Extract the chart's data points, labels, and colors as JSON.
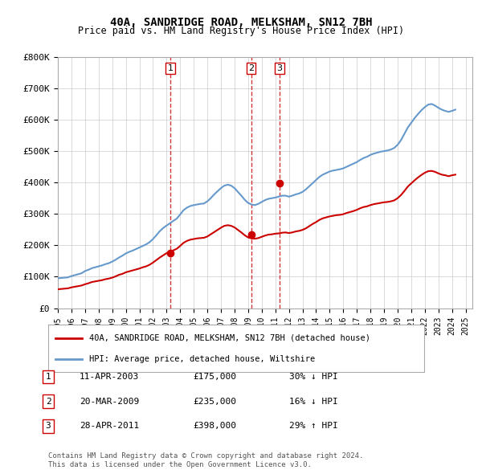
{
  "title": "40A, SANDRIDGE ROAD, MELKSHAM, SN12 7BH",
  "subtitle": "Price paid vs. HM Land Registry's House Price Index (HPI)",
  "legend_line1": "40A, SANDRIDGE ROAD, MELKSHAM, SN12 7BH (detached house)",
  "legend_line2": "HPI: Average price, detached house, Wiltshire",
  "ylabel": "",
  "ylim": [
    0,
    800000
  ],
  "yticks": [
    0,
    100000,
    200000,
    300000,
    400000,
    500000,
    600000,
    700000,
    800000
  ],
  "ytick_labels": [
    "£0",
    "£100K",
    "£200K",
    "£300K",
    "£400K",
    "£500K",
    "£600K",
    "£700K",
    "£800K"
  ],
  "red_color": "#cc0000",
  "blue_color": "#6699cc",
  "sale_marker_color": "#cc0000",
  "vline_color": "#cc0000",
  "background_color": "#ffffff",
  "grid_color": "#cccccc",
  "transactions": [
    {
      "num": 1,
      "date": "11-APR-2003",
      "price": 175000,
      "pct": "30%",
      "dir": "↓",
      "year_x": 2003.28
    },
    {
      "num": 2,
      "date": "20-MAR-2009",
      "price": 235000,
      "pct": "16%",
      "dir": "↓",
      "year_x": 2009.22
    },
    {
      "num": 3,
      "date": "28-APR-2011",
      "price": 398000,
      "pct": "29%",
      "dir": "↑",
      "year_x": 2011.32
    }
  ],
  "hpi_years": [
    1995.0,
    1995.25,
    1995.5,
    1995.75,
    1996.0,
    1996.25,
    1996.5,
    1996.75,
    1997.0,
    1997.25,
    1997.5,
    1997.75,
    1998.0,
    1998.25,
    1998.5,
    1998.75,
    1999.0,
    1999.25,
    1999.5,
    1999.75,
    2000.0,
    2000.25,
    2000.5,
    2000.75,
    2001.0,
    2001.25,
    2001.5,
    2001.75,
    2002.0,
    2002.25,
    2002.5,
    2002.75,
    2003.0,
    2003.25,
    2003.5,
    2003.75,
    2004.0,
    2004.25,
    2004.5,
    2004.75,
    2005.0,
    2005.25,
    2005.5,
    2005.75,
    2006.0,
    2006.25,
    2006.5,
    2006.75,
    2007.0,
    2007.25,
    2007.5,
    2007.75,
    2008.0,
    2008.25,
    2008.5,
    2008.75,
    2009.0,
    2009.25,
    2009.5,
    2009.75,
    2010.0,
    2010.25,
    2010.5,
    2010.75,
    2011.0,
    2011.25,
    2011.5,
    2011.75,
    2012.0,
    2012.25,
    2012.5,
    2012.75,
    2013.0,
    2013.25,
    2013.5,
    2013.75,
    2014.0,
    2014.25,
    2014.5,
    2014.75,
    2015.0,
    2015.25,
    2015.5,
    2015.75,
    2016.0,
    2016.25,
    2016.5,
    2016.75,
    2017.0,
    2017.25,
    2017.5,
    2017.75,
    2018.0,
    2018.25,
    2018.5,
    2018.75,
    2019.0,
    2019.25,
    2019.5,
    2019.75,
    2020.0,
    2020.25,
    2020.5,
    2020.75,
    2021.0,
    2021.25,
    2021.5,
    2021.75,
    2022.0,
    2022.25,
    2022.5,
    2022.75,
    2023.0,
    2023.25,
    2023.5,
    2023.75,
    2024.0,
    2024.25
  ],
  "hpi_values": [
    95000,
    96000,
    97000,
    98000,
    102000,
    105000,
    108000,
    111000,
    118000,
    122000,
    127000,
    130000,
    133000,
    136000,
    140000,
    143000,
    148000,
    154000,
    161000,
    167000,
    174000,
    179000,
    183000,
    188000,
    193000,
    198000,
    203000,
    210000,
    220000,
    232000,
    245000,
    255000,
    263000,
    270000,
    278000,
    285000,
    298000,
    312000,
    320000,
    325000,
    328000,
    330000,
    332000,
    333000,
    340000,
    350000,
    362000,
    372000,
    382000,
    390000,
    393000,
    390000,
    382000,
    370000,
    358000,
    345000,
    335000,
    330000,
    328000,
    332000,
    338000,
    344000,
    348000,
    350000,
    352000,
    355000,
    358000,
    358000,
    355000,
    358000,
    362000,
    365000,
    370000,
    378000,
    388000,
    398000,
    408000,
    418000,
    425000,
    430000,
    435000,
    438000,
    440000,
    442000,
    445000,
    450000,
    455000,
    460000,
    465000,
    472000,
    478000,
    482000,
    488000,
    492000,
    495000,
    498000,
    500000,
    502000,
    505000,
    510000,
    520000,
    535000,
    555000,
    575000,
    590000,
    605000,
    618000,
    630000,
    640000,
    648000,
    650000,
    645000,
    638000,
    632000,
    628000,
    625000,
    628000,
    632000
  ],
  "hpi_indexed_years": [
    1995.0,
    1995.25,
    1995.5,
    1995.75,
    1996.0,
    1996.25,
    1996.5,
    1996.75,
    1997.0,
    1997.25,
    1997.5,
    1997.75,
    1998.0,
    1998.25,
    1998.5,
    1998.75,
    1999.0,
    1999.25,
    1999.5,
    1999.75,
    2000.0,
    2000.25,
    2000.5,
    2000.75,
    2001.0,
    2001.25,
    2001.5,
    2001.75,
    2002.0,
    2002.25,
    2002.5,
    2002.75,
    2003.0,
    2003.25,
    2003.5,
    2003.75,
    2004.0,
    2004.25,
    2004.5,
    2004.75,
    2005.0,
    2005.25,
    2005.5,
    2005.75,
    2006.0,
    2006.25,
    2006.5,
    2006.75,
    2007.0,
    2007.25,
    2007.5,
    2007.75,
    2008.0,
    2008.25,
    2008.5,
    2008.75,
    2009.0,
    2009.25,
    2009.5,
    2009.75,
    2010.0,
    2010.25,
    2010.5,
    2010.75,
    2011.0,
    2011.25,
    2011.5,
    2011.75,
    2012.0,
    2012.25,
    2012.5,
    2012.75,
    2013.0,
    2013.25,
    2013.5,
    2013.75,
    2014.0,
    2014.25,
    2014.5,
    2014.75,
    2015.0,
    2015.25,
    2015.5,
    2015.75,
    2016.0,
    2016.25,
    2016.5,
    2016.75,
    2017.0,
    2017.25,
    2017.5,
    2017.75,
    2018.0,
    2018.25,
    2018.5,
    2018.75,
    2019.0,
    2019.25,
    2019.5,
    2019.75,
    2020.0,
    2020.25,
    2020.5,
    2020.75,
    2021.0,
    2021.25,
    2021.5,
    2021.75,
    2022.0,
    2022.25,
    2022.5,
    2022.75,
    2023.0,
    2023.25,
    2023.5,
    2023.75,
    2024.0,
    2024.25
  ],
  "red_indexed_values": [
    60000,
    61000,
    62000,
    63000,
    66000,
    68000,
    70000,
    72000,
    76000,
    79000,
    83000,
    85000,
    87000,
    89000,
    92000,
    94000,
    97000,
    101000,
    106000,
    109000,
    114000,
    117000,
    120000,
    123000,
    126000,
    130000,
    133000,
    138000,
    145000,
    153000,
    161000,
    168000,
    175000,
    179000,
    184000,
    189000,
    198000,
    208000,
    214000,
    218000,
    220000,
    222000,
    223000,
    224000,
    228000,
    235000,
    242000,
    249000,
    256000,
    262000,
    264000,
    262000,
    257000,
    249000,
    241000,
    232000,
    225000,
    222000,
    221000,
    223000,
    227000,
    231000,
    234000,
    235000,
    237000,
    238000,
    240000,
    241000,
    239000,
    241000,
    244000,
    246000,
    249000,
    254000,
    261000,
    268000,
    274000,
    281000,
    286000,
    289000,
    292000,
    294000,
    296000,
    297000,
    299000,
    303000,
    306000,
    309000,
    313000,
    318000,
    322000,
    324000,
    328000,
    331000,
    333000,
    335000,
    337000,
    338000,
    340000,
    343000,
    350000,
    360000,
    373000,
    387000,
    397000,
    407000,
    416000,
    424000,
    431000,
    436000,
    437000,
    434000,
    429000,
    425000,
    423000,
    420000,
    423000,
    425000
  ],
  "xtick_years": [
    1995,
    1996,
    1997,
    1998,
    1999,
    2000,
    2001,
    2002,
    2003,
    2004,
    2005,
    2006,
    2007,
    2008,
    2009,
    2010,
    2011,
    2012,
    2013,
    2014,
    2015,
    2016,
    2017,
    2018,
    2019,
    2020,
    2021,
    2022,
    2023,
    2024,
    2025
  ],
  "footer_line1": "Contains HM Land Registry data © Crown copyright and database right 2024.",
  "footer_line2": "This data is licensed under the Open Government Licence v3.0."
}
